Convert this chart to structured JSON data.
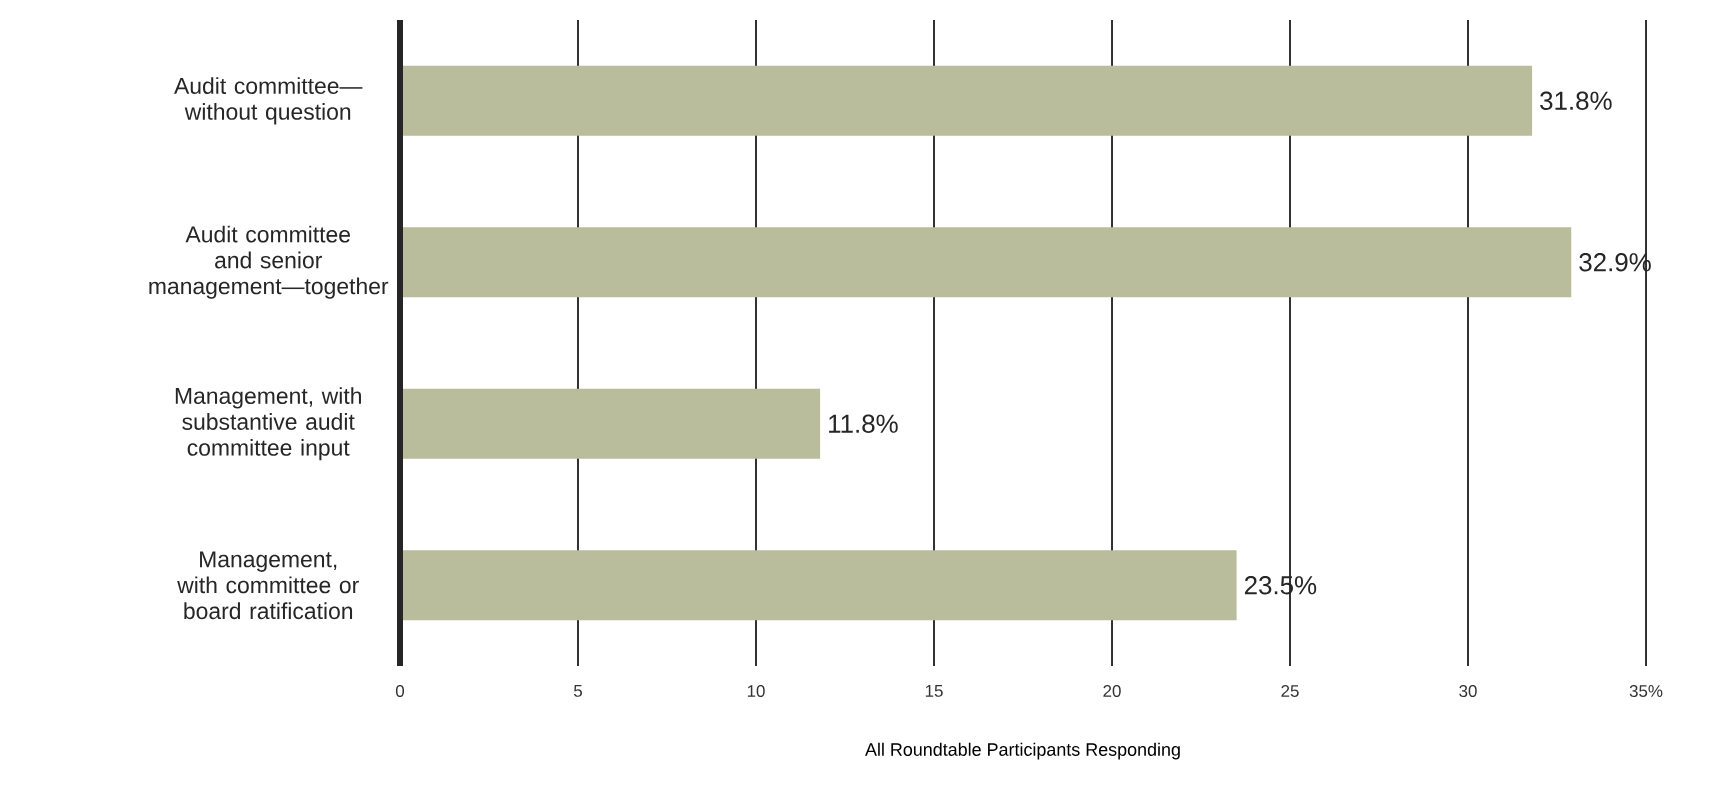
{
  "chart_data": {
    "type": "bar",
    "orientation": "horizontal",
    "categories": [
      "Audit committee—without question",
      "Audit committee and senior management—together",
      "Management, with substantive audit committee input",
      "Management, with committee or board ratification"
    ],
    "values": [
      31.8,
      32.9,
      11.8,
      23.5
    ],
    "value_labels": [
      "31.8%",
      "32.9%",
      "11.8%",
      "23.5%"
    ],
    "color": "#b9bd9b",
    "xlim": [
      0,
      35
    ],
    "xticks": [
      0,
      5,
      10,
      15,
      20,
      25,
      30,
      {
        "value": 35,
        "label": "35%"
      }
    ],
    "xlabel": "All Roundtable Participants Responding",
    "grid": "x"
  }
}
